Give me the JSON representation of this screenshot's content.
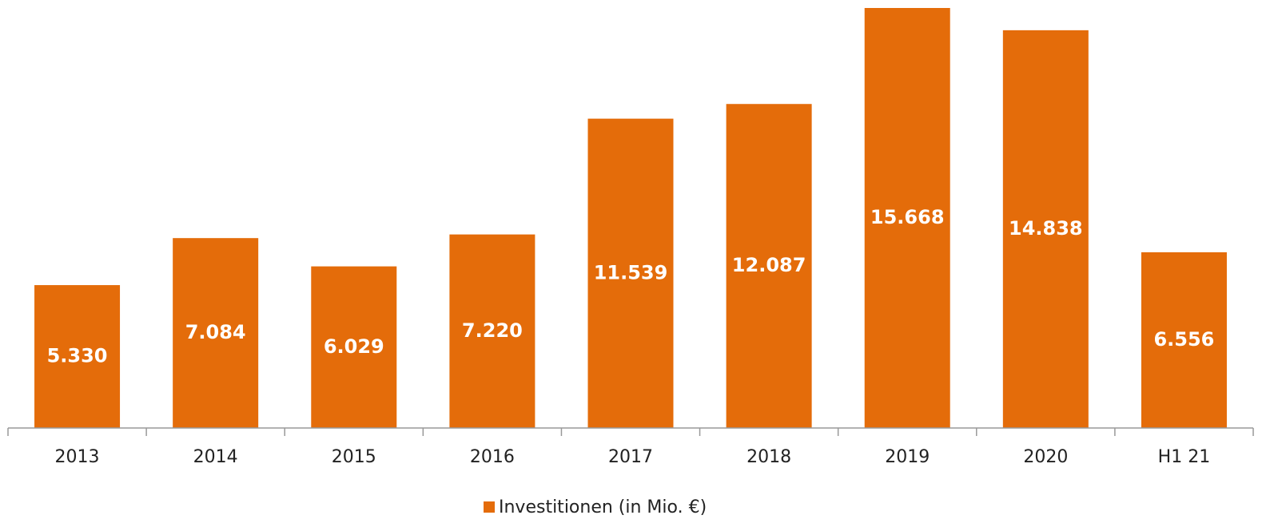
{
  "chart_data": {
    "type": "bar",
    "categories": [
      "2013",
      "2014",
      "2015",
      "2016",
      "2017",
      "2018",
      "2019",
      "2020",
      "H1 21"
    ],
    "series": [
      {
        "name": "Investitionen (in Mio. €)",
        "color": "#e46c0a",
        "values": [
          5330,
          7084,
          6029,
          7220,
          11539,
          12087,
          15668,
          14838,
          6556
        ],
        "value_labels": [
          "5.330",
          "7.084",
          "6.029",
          "7.220",
          "11.539",
          "12.087",
          "15.668",
          "14.838",
          "6.556"
        ]
      }
    ],
    "legend": "bottom"
  }
}
